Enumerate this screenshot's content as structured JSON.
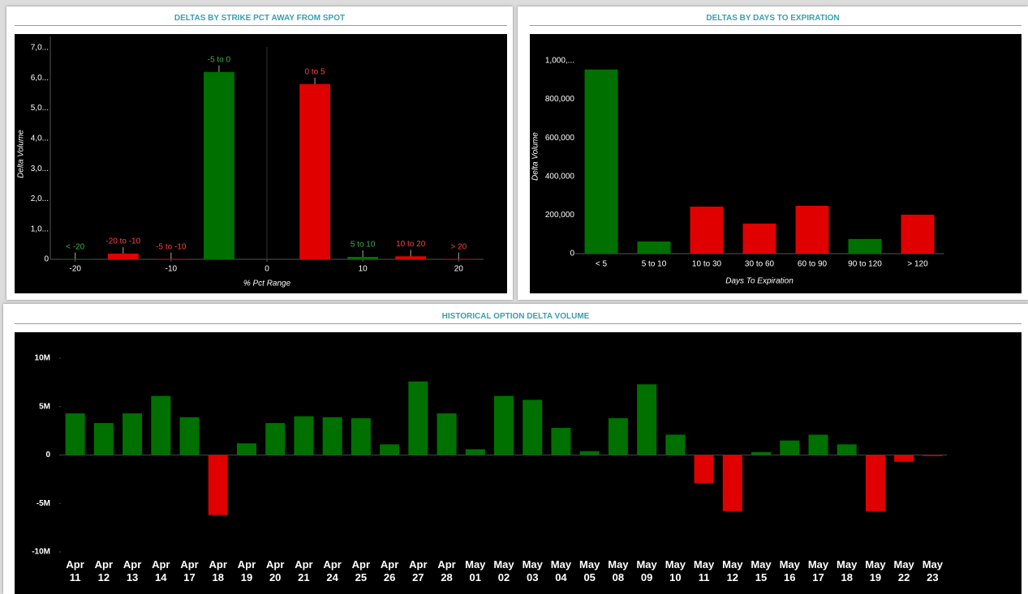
{
  "chart_data": [
    {
      "type": "bar",
      "title": "DELTAS BY STRIKE PCT AWAY FROM SPOT",
      "y_label": "Delta Volume",
      "x_label": "% Pct Range",
      "x": [
        -20,
        -15,
        -10,
        -5,
        5,
        10,
        15,
        20
      ],
      "labels": [
        "< -20",
        "-20 to -10",
        "-5 to -10",
        "-5 to 0",
        "0 to 5",
        "5 to 10",
        "10 to 20",
        "> 20"
      ],
      "values": [
        10,
        190,
        10,
        6200,
        5800,
        80,
        100,
        10
      ],
      "colors": [
        "#007000",
        "#e00000",
        "#e00000",
        "#007000",
        "#e00000",
        "#007000",
        "#e00000",
        "#e00000"
      ],
      "label_colors": [
        "#40b040",
        "#ff4040",
        "#ff4040",
        "#40b040",
        "#ff4040",
        "#40b040",
        "#ff4040",
        "#ff4040"
      ],
      "xlim": [
        -22.6,
        22.6
      ],
      "xticks": [
        -20,
        -10,
        0,
        10,
        20
      ],
      "ylim": [
        0,
        7000
      ],
      "yticks": [
        0,
        {
          "value": 1000,
          "label": "1,0..."
        },
        {
          "value": 2000,
          "label": "2,0..."
        },
        {
          "value": 3000,
          "label": "3,0..."
        },
        {
          "value": 4000,
          "label": "4,0..."
        },
        {
          "value": 5000,
          "label": "5,0..."
        },
        {
          "value": 6000,
          "label": "6,0..."
        },
        {
          "value": 7000,
          "label": "7,0..."
        }
      ]
    },
    {
      "type": "bar",
      "title": "DELTAS BY DAYS TO EXPIRATION",
      "y_label": "Delta Volume",
      "x_label": "Days To Expiration",
      "categories": [
        "< 5",
        "5 to 10",
        "10 to 30",
        "30 to 60",
        "60 to 90",
        "90 to 120",
        "> 120"
      ],
      "values": [
        955000,
        63000,
        244000,
        156000,
        248000,
        76000,
        202000
      ],
      "colors": [
        "#007000",
        "#007000",
        "#e00000",
        "#e00000",
        "#e00000",
        "#007000",
        "#e00000"
      ],
      "ylim": [
        0,
        1000000
      ],
      "yticks": [
        0,
        {
          "value": 200000,
          "label": "200,000"
        },
        {
          "value": 400000,
          "label": "400,000"
        },
        {
          "value": 600000,
          "label": "600,000"
        },
        {
          "value": 800000,
          "label": "800,000"
        },
        {
          "value": 1000000,
          "label": "1,000,..."
        }
      ]
    },
    {
      "type": "bar",
      "title": "HISTORICAL OPTION DELTA VOLUME",
      "categories": [
        "Apr 11",
        "Apr 12",
        "Apr 13",
        "Apr 14",
        "Apr 17",
        "Apr 18",
        "Apr 19",
        "Apr 20",
        "Apr 21",
        "Apr 24",
        "Apr 25",
        "Apr 26",
        "Apr 27",
        "Apr 28",
        "May 01",
        "May 02",
        "May 03",
        "May 04",
        "May 05",
        "May 08",
        "May 09",
        "May 10",
        "May 11",
        "May 12",
        "May 15",
        "May 16",
        "May 17",
        "May 18",
        "May 19",
        "May 22",
        "May 23"
      ],
      "values": [
        4300000,
        3300000,
        4300000,
        6100000,
        3900000,
        -6200000,
        1200000,
        3300000,
        4000000,
        3900000,
        3800000,
        1100000,
        7600000,
        4300000,
        600000,
        6100000,
        5700000,
        2800000,
        400000,
        3800000,
        7300000,
        2100000,
        -2900000,
        -5800000,
        300000,
        1500000,
        2100000,
        1100000,
        -5800000,
        -700000,
        -100000
      ],
      "positive_color": "#007000",
      "negative_color": "#e00000",
      "ylim": [
        -10000000,
        10000000
      ],
      "yticks": [
        {
          "value": 10000000,
          "label": "10M"
        },
        {
          "value": 5000000,
          "label": "5M"
        },
        0,
        {
          "value": -5000000,
          "label": "-5M"
        },
        {
          "value": -10000000,
          "label": "-10M"
        }
      ]
    }
  ]
}
